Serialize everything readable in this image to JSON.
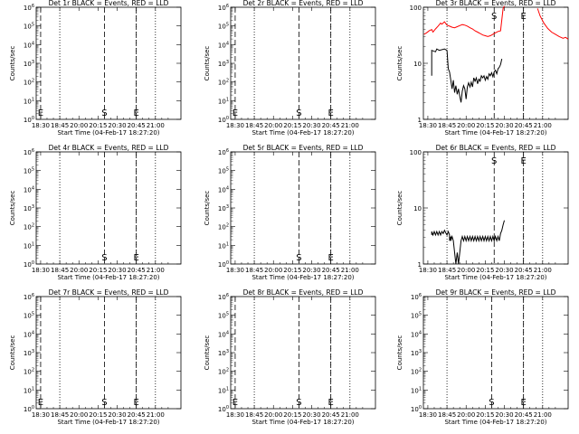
{
  "figure": {
    "x_tick_labels": [
      "18:30",
      "18:45",
      "20:00",
      "20:15",
      "20:30",
      "20:45",
      "21:00"
    ],
    "xlabel": "Start Time (04-Feb-17 18:27:20)",
    "ylabel": "Counts/sec",
    "dotted_line_times": [
      "18:45",
      "20:45",
      "21:00"
    ],
    "colors": {
      "events": "#000000",
      "lld": "#ff0000"
    }
  },
  "chart_data": [
    {
      "type": "line",
      "title": "Det 1r BLACK = Events, RED = LLD",
      "yscale": "log",
      "y_tick_labels": [
        "10^0",
        "10^1",
        "10^2",
        "10^3",
        "10^4",
        "10^5",
        "10^6"
      ],
      "ylim": [
        1,
        1000000
      ],
      "markers": [
        {
          "label": "E",
          "time": "18:30"
        },
        {
          "label": "S",
          "time": "20:20"
        },
        {
          "label": "E",
          "time": "20:45"
        }
      ],
      "series": []
    },
    {
      "type": "line",
      "title": "Det 2r BLACK = Events, RED = LLD",
      "yscale": "log",
      "y_tick_labels": [
        "10^0",
        "10^1",
        "10^2",
        "10^3",
        "10^4",
        "10^5",
        "10^6"
      ],
      "ylim": [
        1,
        1000000
      ],
      "markers": [
        {
          "label": "E",
          "time": "18:30"
        },
        {
          "label": "S",
          "time": "20:20"
        },
        {
          "label": "E",
          "time": "20:45"
        }
      ],
      "series": []
    },
    {
      "type": "line",
      "title": "Det 3r BLACK = Events, RED = LLD",
      "yscale": "log",
      "y_tick_labels": [
        "1",
        "10",
        "100"
      ],
      "ylim": [
        1,
        100
      ],
      "markers": [
        {
          "label": "S",
          "time": "20:22"
        },
        {
          "label": "E",
          "time": "20:45"
        }
      ],
      "series": [
        {
          "color": "#ff0000",
          "points": [
            [
              -3,
              33
            ],
            [
              -1,
              35
            ],
            [
              1,
              38
            ],
            [
              3,
              40
            ],
            [
              4,
              36
            ],
            [
              6,
              41
            ],
            [
              8,
              46
            ],
            [
              10,
              52
            ],
            [
              11,
              50
            ],
            [
              13,
              55
            ],
            [
              15,
              48
            ],
            [
              17,
              46
            ],
            [
              19,
              44
            ],
            [
              21,
              43
            ],
            [
              23,
              45
            ],
            [
              25,
              47
            ],
            [
              27,
              49
            ],
            [
              29,
              48
            ],
            [
              31,
              46
            ],
            [
              33,
              43
            ],
            [
              35,
              41
            ],
            [
              37,
              38
            ],
            [
              39,
              36
            ],
            [
              41,
              34
            ],
            [
              43,
              32
            ],
            [
              45,
              31
            ],
            [
              47,
              30
            ],
            [
              49,
              31
            ],
            [
              51,
              33
            ],
            [
              53,
              35
            ],
            [
              55,
              37
            ],
            [
              57,
              38
            ],
            [
              59,
              95
            ],
            [
              60,
              105
            ]
          ]
        },
        {
          "color": "#ff0000",
          "points": [
            [
              86,
              95
            ],
            [
              88,
              70
            ],
            [
              91,
              52
            ],
            [
              94,
              42
            ],
            [
              97,
              36
            ],
            [
              100,
              33
            ],
            [
              103,
              30
            ],
            [
              106,
              28
            ],
            [
              108,
              29
            ],
            [
              110,
              27
            ]
          ]
        },
        {
          "color": "#000000",
          "points": [
            [
              3,
              6
            ],
            [
              3,
              17
            ],
            [
              6,
              16
            ],
            [
              7,
              18
            ],
            [
              9,
              17
            ],
            [
              13,
              18
            ],
            [
              15,
              17
            ],
            [
              16,
              8
            ],
            [
              17,
              7
            ],
            [
              18,
              5
            ],
            [
              19,
              3.5
            ],
            [
              20,
              5
            ],
            [
              21,
              3
            ],
            [
              22,
              4
            ],
            [
              23,
              2.8
            ],
            [
              24,
              3.5
            ],
            [
              25,
              2.6
            ],
            [
              26,
              2
            ],
            [
              27,
              3.2
            ],
            [
              28,
              4
            ],
            [
              29,
              3.5
            ],
            [
              30,
              2.3
            ],
            [
              31,
              3.8
            ],
            [
              32,
              4.5
            ],
            [
              33,
              3.8
            ],
            [
              34,
              4.6
            ],
            [
              35,
              3.8
            ],
            [
              36,
              5.5
            ],
            [
              37,
              4.8
            ],
            [
              38,
              5.5
            ],
            [
              39,
              4.3
            ],
            [
              40,
              5.2
            ],
            [
              41,
              4.8
            ],
            [
              42,
              6
            ],
            [
              43,
              5.5
            ],
            [
              44,
              6
            ],
            [
              45,
              5
            ],
            [
              46,
              5.8
            ],
            [
              47,
              5.2
            ],
            [
              48,
              6.5
            ],
            [
              49,
              6
            ],
            [
              50,
              6.8
            ],
            [
              51,
              5.8
            ],
            [
              52,
              7
            ],
            [
              53,
              7.5
            ],
            [
              54,
              6.5
            ],
            [
              55,
              8
            ],
            [
              56,
              8.5
            ],
            [
              57,
              9.5
            ],
            [
              58,
              12
            ]
          ]
        }
      ]
    },
    {
      "type": "line",
      "title": "Det 4r BLACK = Events, RED = LLD",
      "yscale": "log",
      "y_tick_labels": [
        "10^0",
        "10^1",
        "10^2",
        "10^3",
        "10^4",
        "10^5",
        "10^6"
      ],
      "ylim": [
        1,
        1000000
      ],
      "markers": [
        {
          "label": "S",
          "time": "20:20"
        },
        {
          "label": "E",
          "time": "20:45"
        }
      ],
      "series": []
    },
    {
      "type": "line",
      "title": "Det 5r BLACK = Events, RED = LLD",
      "yscale": "log",
      "y_tick_labels": [
        "10^0",
        "10^1",
        "10^2",
        "10^3",
        "10^4",
        "10^5",
        "10^6"
      ],
      "ylim": [
        1,
        1000000
      ],
      "markers": [
        {
          "label": "S",
          "time": "20:20"
        },
        {
          "label": "E",
          "time": "20:45"
        }
      ],
      "series": []
    },
    {
      "type": "line",
      "title": "Det 6r BLACK = Events, RED = LLD",
      "yscale": "log",
      "y_tick_labels": [
        "1",
        "10",
        "100"
      ],
      "ylim": [
        1,
        100
      ],
      "markers": [
        {
          "label": "S",
          "time": "20:22"
        },
        {
          "label": "E",
          "time": "20:45"
        }
      ],
      "series": [
        {
          "color": "#000000",
          "points": [
            [
              3,
              3.3
            ],
            [
              3,
              3.8
            ],
            [
              4,
              3.3
            ],
            [
              5,
              3.8
            ],
            [
              6,
              3.3
            ],
            [
              7,
              3.8
            ],
            [
              8,
              3.3
            ],
            [
              9,
              3.8
            ],
            [
              10,
              3.3
            ],
            [
              11,
              3.8
            ],
            [
              12,
              3.5
            ],
            [
              13,
              4
            ],
            [
              14,
              3.6
            ],
            [
              15,
              3.3
            ],
            [
              16,
              3.8
            ],
            [
              17,
              3.3
            ],
            [
              17,
              2.6
            ],
            [
              18,
              3.1
            ],
            [
              18,
              2.6
            ],
            [
              19,
              3.1
            ],
            [
              20,
              2.6
            ],
            [
              21,
              1.6
            ],
            [
              22,
              1
            ],
            [
              23,
              1.6
            ],
            [
              24,
              1
            ],
            [
              25,
              1.6
            ],
            [
              26,
              2.6
            ],
            [
              27,
              3.1
            ],
            [
              28,
              2.6
            ],
            [
              29,
              3.1
            ],
            [
              30,
              2.6
            ],
            [
              31,
              3.1
            ],
            [
              32,
              2.6
            ],
            [
              33,
              3.1
            ],
            [
              34,
              2.6
            ],
            [
              35,
              3.1
            ],
            [
              36,
              2.6
            ],
            [
              37,
              3.1
            ],
            [
              38,
              2.6
            ],
            [
              39,
              3.1
            ],
            [
              40,
              2.6
            ],
            [
              41,
              3.1
            ],
            [
              42,
              2.6
            ],
            [
              43,
              3.1
            ],
            [
              44,
              2.6
            ],
            [
              45,
              3.1
            ],
            [
              46,
              2.6
            ],
            [
              47,
              3.1
            ],
            [
              48,
              2.6
            ],
            [
              49,
              3.1
            ],
            [
              50,
              2.6
            ],
            [
              51,
              3.1
            ],
            [
              52,
              2.6
            ],
            [
              53,
              3.1
            ],
            [
              54,
              2.6
            ],
            [
              55,
              3.1
            ],
            [
              56,
              2.6
            ],
            [
              57,
              3.5
            ],
            [
              58,
              4
            ],
            [
              59,
              5
            ],
            [
              60,
              6
            ]
          ]
        }
      ]
    },
    {
      "type": "line",
      "title": "Det 7r BLACK = Events, RED = LLD",
      "yscale": "log",
      "y_tick_labels": [
        "10^0",
        "10^1",
        "10^2",
        "10^3",
        "10^4",
        "10^5",
        "10^6"
      ],
      "ylim": [
        1,
        1000000
      ],
      "markers": [
        {
          "label": "E",
          "time": "18:30"
        },
        {
          "label": "S",
          "time": "20:20"
        },
        {
          "label": "E",
          "time": "20:45"
        }
      ],
      "series": []
    },
    {
      "type": "line",
      "title": "Det 8r BLACK = Events, RED = LLD",
      "yscale": "log",
      "y_tick_labels": [
        "10^0",
        "10^1",
        "10^2",
        "10^3",
        "10^4",
        "10^5",
        "10^6"
      ],
      "ylim": [
        1,
        1000000
      ],
      "markers": [
        {
          "label": "E",
          "time": "18:30"
        },
        {
          "label": "S",
          "time": "20:20"
        },
        {
          "label": "E",
          "time": "20:45"
        }
      ],
      "series": []
    },
    {
      "type": "line",
      "title": "Det 9r BLACK = Events, RED = LLD",
      "yscale": "log",
      "y_tick_labels": [
        "10^0",
        "10^1",
        "10^2",
        "10^3",
        "10^4",
        "10^5",
        "10^6"
      ],
      "ylim": [
        1,
        1000000
      ],
      "markers": [
        {
          "label": "S",
          "time": "20:20"
        },
        {
          "label": "E",
          "time": "20:45"
        }
      ],
      "series": []
    }
  ]
}
